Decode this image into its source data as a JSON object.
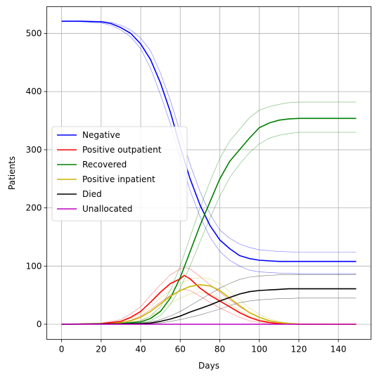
{
  "chart_data": {
    "type": "line",
    "xlabel": "Days",
    "ylabel": "Patients",
    "xlim": [
      -7.5,
      156.5
    ],
    "ylim": [
      -26,
      546
    ],
    "xticks": [
      0,
      20,
      40,
      60,
      80,
      100,
      120,
      140
    ],
    "yticks": [
      0,
      100,
      200,
      300,
      400,
      500
    ],
    "grid": true,
    "legend_position": "center-left",
    "series": [
      {
        "name": "Negative",
        "color": "#0000ff",
        "x": [
          0,
          10,
          20,
          25,
          30,
          35,
          40,
          45,
          50,
          55,
          60,
          65,
          70,
          75,
          80,
          85,
          90,
          95,
          100,
          110,
          120,
          149
        ],
        "y": [
          521,
          521,
          520,
          517,
          510,
          500,
          482,
          455,
          415,
          365,
          305,
          250,
          205,
          170,
          145,
          130,
          118,
          113,
          110,
          108,
          108,
          108
        ],
        "band_upper": [
          521,
          521,
          521,
          519,
          514,
          506,
          492,
          470,
          432,
          385,
          330,
          275,
          228,
          190,
          162,
          148,
          138,
          132,
          128,
          125,
          124,
          124
        ],
        "band_lower": [
          521,
          520,
          518,
          514,
          506,
          494,
          474,
          440,
          395,
          345,
          285,
          230,
          185,
          150,
          125,
          110,
          100,
          93,
          90,
          88,
          87,
          87
        ]
      },
      {
        "name": "Positive outpatient",
        "color": "#ff0000",
        "x": [
          0,
          20,
          30,
          35,
          40,
          45,
          50,
          55,
          60,
          62,
          65,
          70,
          75,
          80,
          85,
          90,
          95,
          100,
          105,
          110,
          120,
          149
        ],
        "y": [
          0,
          1,
          5,
          12,
          22,
          38,
          55,
          70,
          78,
          84,
          78,
          62,
          50,
          40,
          30,
          20,
          12,
          6,
          3,
          1,
          0,
          0
        ],
        "band_upper": [
          0,
          2,
          8,
          18,
          30,
          50,
          68,
          85,
          95,
          98,
          95,
          82,
          68,
          55,
          42,
          30,
          20,
          12,
          6,
          3,
          1,
          0
        ],
        "band_lower": [
          0,
          0,
          3,
          7,
          14,
          25,
          38,
          50,
          58,
          60,
          58,
          48,
          38,
          28,
          20,
          12,
          6,
          3,
          1,
          0,
          0,
          0
        ]
      },
      {
        "name": "Recovered",
        "color": "#008000",
        "x": [
          0,
          30,
          40,
          45,
          50,
          55,
          60,
          65,
          70,
          75,
          80,
          85,
          90,
          95,
          100,
          105,
          110,
          115,
          120,
          149
        ],
        "y": [
          0,
          1,
          4,
          10,
          22,
          45,
          80,
          125,
          170,
          210,
          250,
          280,
          300,
          320,
          338,
          346,
          351,
          353,
          354,
          354
        ],
        "band_upper": [
          0,
          2,
          6,
          14,
          30,
          58,
          100,
          150,
          200,
          245,
          285,
          315,
          335,
          355,
          368,
          374,
          378,
          381,
          382,
          382
        ],
        "band_lower": [
          0,
          0,
          2,
          6,
          15,
          34,
          62,
          100,
          142,
          182,
          220,
          252,
          275,
          295,
          310,
          320,
          325,
          328,
          330,
          330
        ]
      },
      {
        "name": "Positive inpatient",
        "color": "#c8b400",
        "x": [
          0,
          25,
          30,
          35,
          40,
          45,
          50,
          55,
          60,
          65,
          70,
          75,
          80,
          85,
          90,
          95,
          100,
          105,
          110,
          115,
          120,
          149
        ],
        "y": [
          0,
          1,
          3,
          6,
          12,
          22,
          35,
          48,
          58,
          65,
          68,
          66,
          58,
          45,
          32,
          20,
          12,
          6,
          3,
          1,
          0,
          0
        ],
        "band_upper": [
          0,
          2,
          5,
          10,
          18,
          30,
          45,
          58,
          70,
          78,
          80,
          78,
          70,
          56,
          42,
          28,
          17,
          9,
          5,
          2,
          1,
          0
        ],
        "band_lower": [
          0,
          0,
          1,
          3,
          7,
          14,
          24,
          36,
          45,
          52,
          55,
          52,
          45,
          35,
          24,
          14,
          8,
          4,
          2,
          0,
          0,
          0
        ]
      },
      {
        "name": "Died",
        "color": "#000000",
        "x": [
          0,
          40,
          45,
          50,
          55,
          60,
          65,
          70,
          75,
          80,
          85,
          90,
          95,
          100,
          105,
          110,
          115,
          120,
          149
        ],
        "y": [
          0,
          1,
          2,
          5,
          9,
          14,
          21,
          27,
          33,
          40,
          46,
          52,
          56,
          58,
          59,
          60,
          61,
          61,
          61
        ],
        "band_upper": [
          0,
          2,
          4,
          8,
          14,
          22,
          32,
          42,
          52,
          62,
          70,
          77,
          81,
          83,
          84,
          85,
          85,
          85,
          85
        ],
        "band_lower": [
          0,
          0,
          1,
          2,
          5,
          8,
          12,
          16,
          21,
          26,
          32,
          37,
          40,
          42,
          43,
          44,
          44,
          45,
          45
        ]
      },
      {
        "name": "Unallocated",
        "color": "#c000c0",
        "x": [
          0,
          149
        ],
        "y": [
          0,
          0
        ]
      }
    ]
  }
}
